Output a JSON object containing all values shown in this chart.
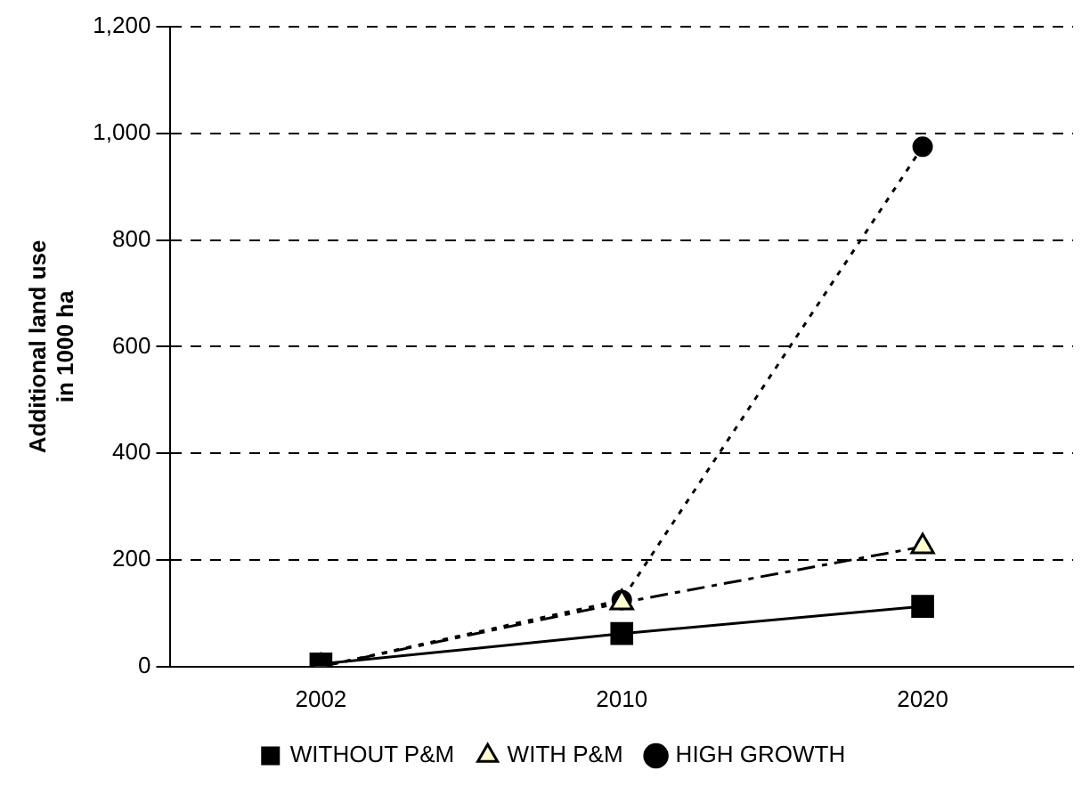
{
  "chart_data": {
    "type": "line",
    "ylabel": "Additional land use\nin 1000 ha",
    "categories": [
      "2002",
      "2010",
      "2020"
    ],
    "ylim": [
      0,
      1200
    ],
    "yticks": [
      {
        "value": 0,
        "label": "0"
      },
      {
        "value": 200,
        "label": "200"
      },
      {
        "value": 400,
        "label": "400"
      },
      {
        "value": 600,
        "label": "600"
      },
      {
        "value": 800,
        "label": "800"
      },
      {
        "value": 1000,
        "label": "1,000"
      },
      {
        "value": 1200,
        "label": "1,200"
      }
    ],
    "grid": "y",
    "legend": "bottom",
    "series": [
      {
        "name": "WITHOUT P&M",
        "color": "#000000",
        "values": [
          5,
          62,
          113
        ],
        "marker": "square",
        "line_style": "solid"
      },
      {
        "name": "WITH P&M",
        "color": "#000000",
        "values": [
          0,
          120,
          225
        ],
        "marker": "triangle",
        "line_style": "dashed"
      },
      {
        "name": "HIGH GROWTH",
        "color": "#000000",
        "values": [
          0,
          125,
          975
        ],
        "marker": "circle",
        "line_style": "dotted"
      }
    ]
  }
}
